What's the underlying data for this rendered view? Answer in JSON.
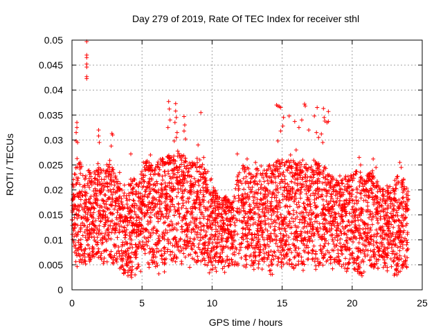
{
  "chart_data": {
    "type": "scatter",
    "title": "Day 279 of 2019, Rate Of TEC Index for receiver sthl",
    "xlabel": "GPS time / hours",
    "ylabel": "ROTI / TECUs",
    "xlim": [
      0,
      25
    ],
    "ylim": [
      0,
      0.05
    ],
    "xticks": [
      0,
      5,
      10,
      15,
      20,
      25
    ],
    "xtick_labels": [
      "0",
      "5",
      "10",
      "15",
      "20",
      "25"
    ],
    "yticks": [
      0,
      0.005,
      0.01,
      0.015,
      0.02,
      0.025,
      0.03,
      0.035,
      0.04,
      0.045,
      0.05
    ],
    "ytick_labels": [
      "0",
      "0.005",
      "0.01",
      "0.015",
      "0.02",
      "0.025",
      "0.03",
      "0.035",
      "0.04",
      "0.045",
      "0.05"
    ],
    "grid": true,
    "marker": "+",
    "color": "#ff0000",
    "series": [
      {
        "name": "ROTI",
        "points": [
          [
            1.05,
            0.0497
          ],
          [
            1.05,
            0.047
          ],
          [
            1.05,
            0.0465
          ],
          [
            1.05,
            0.0452
          ],
          [
            1.05,
            0.0446
          ],
          [
            1.05,
            0.0427
          ],
          [
            1.05,
            0.0423
          ],
          [
            0.35,
            0.0335
          ],
          [
            0.35,
            0.0325
          ],
          [
            0.3,
            0.0315
          ],
          [
            0.3,
            0.0298
          ],
          [
            0.4,
            0.0295
          ],
          [
            1.9,
            0.032
          ],
          [
            1.9,
            0.0308
          ],
          [
            1.95,
            0.0295
          ],
          [
            2.85,
            0.0313
          ],
          [
            2.9,
            0.031
          ],
          [
            2.8,
            0.0288
          ],
          [
            3.4,
            0.0235
          ],
          [
            6.9,
            0.0377
          ],
          [
            6.95,
            0.0362
          ],
          [
            7.0,
            0.034
          ],
          [
            6.85,
            0.0325
          ],
          [
            7.4,
            0.0373
          ],
          [
            7.4,
            0.0358
          ],
          [
            7.45,
            0.0345
          ],
          [
            7.35,
            0.0335
          ],
          [
            7.5,
            0.0315
          ],
          [
            7.45,
            0.0305
          ],
          [
            7.3,
            0.0298
          ],
          [
            8.0,
            0.0347
          ],
          [
            8.05,
            0.033
          ],
          [
            8.0,
            0.0318
          ],
          [
            8.1,
            0.0302
          ],
          [
            9.2,
            0.0355
          ],
          [
            9.0,
            0.029
          ],
          [
            14.6,
            0.037
          ],
          [
            14.7,
            0.0368
          ],
          [
            14.8,
            0.0367
          ],
          [
            14.9,
            0.0365
          ],
          [
            15.1,
            0.0345
          ],
          [
            15.05,
            0.0328
          ],
          [
            14.9,
            0.0318
          ],
          [
            14.7,
            0.0298
          ],
          [
            15.5,
            0.0348
          ],
          [
            15.9,
            0.0337
          ],
          [
            16.2,
            0.0325
          ],
          [
            16.6,
            0.0372
          ],
          [
            16.65,
            0.0368
          ],
          [
            16.4,
            0.034
          ],
          [
            16.9,
            0.032
          ],
          [
            17.5,
            0.0365
          ],
          [
            17.3,
            0.0348
          ],
          [
            17.45,
            0.0315
          ],
          [
            17.6,
            0.0305
          ],
          [
            17.95,
            0.0363
          ],
          [
            18.0,
            0.0345
          ],
          [
            18.05,
            0.0338
          ],
          [
            18.3,
            0.0357
          ],
          [
            18.3,
            0.0337
          ],
          [
            18.2,
            0.0335
          ],
          [
            17.8,
            0.0312
          ],
          [
            17.9,
            0.0295
          ],
          [
            15.0,
            0.0255
          ],
          [
            15.2,
            0.025
          ],
          [
            16.0,
            0.028
          ],
          [
            15.6,
            0.027
          ],
          [
            11.8,
            0.0272
          ],
          [
            20.5,
            0.0265
          ],
          [
            20.6,
            0.025
          ],
          [
            21.5,
            0.0262
          ],
          [
            21.7,
            0.0245
          ],
          [
            23.4,
            0.0255
          ],
          [
            23.5,
            0.0245
          ],
          [
            4.2,
            0.0272
          ],
          [
            5.1,
            0.0255
          ],
          [
            5.6,
            0.027
          ],
          [
            9.4,
            0.0265
          ],
          [
            12.5,
            0.0262
          ],
          [
            13.1,
            0.0255
          ],
          [
            13.5,
            0.0248
          ],
          [
            3.5,
            0.0045
          ],
          [
            3.8,
            0.0035
          ],
          [
            4.0,
            0.0028
          ],
          [
            4.2,
            0.003
          ],
          [
            4.25,
            0.0025
          ],
          [
            4.5,
            0.003
          ],
          [
            4.9,
            0.0037
          ],
          [
            5.5,
            0.0045
          ],
          [
            6.2,
            0.0032
          ],
          [
            6.6,
            0.0036
          ],
          [
            8.4,
            0.0045
          ],
          [
            9.8,
            0.0034
          ],
          [
            10.3,
            0.0037
          ],
          [
            10.9,
            0.0035
          ],
          [
            11.2,
            0.0048
          ],
          [
            13.3,
            0.0044
          ],
          [
            14.1,
            0.0038
          ],
          [
            14.3,
            0.0031
          ],
          [
            16.5,
            0.0039
          ],
          [
            17.4,
            0.0041
          ],
          [
            18.6,
            0.0042
          ],
          [
            19.6,
            0.0037
          ],
          [
            20.2,
            0.004
          ],
          [
            20.5,
            0.0032
          ],
          [
            20.7,
            0.0028
          ],
          [
            22.5,
            0.0038
          ],
          [
            23.0,
            0.0029
          ],
          [
            23.05,
            0.0032
          ],
          [
            23.2,
            0.003
          ],
          [
            23.3,
            0.0035
          ],
          [
            23.9,
            0.0045
          ]
        ],
        "bulk_envelope": [
          [
            0.0,
            0.009,
            0.02
          ],
          [
            0.25,
            0.004,
            0.026
          ],
          [
            0.5,
            0.004,
            0.027
          ],
          [
            0.75,
            0.005,
            0.025
          ],
          [
            1.0,
            0.005,
            0.023
          ],
          [
            1.25,
            0.005,
            0.025
          ],
          [
            1.5,
            0.006,
            0.023
          ],
          [
            1.75,
            0.005,
            0.025
          ],
          [
            2.0,
            0.005,
            0.026
          ],
          [
            2.25,
            0.005,
            0.024
          ],
          [
            2.5,
            0.005,
            0.026
          ],
          [
            2.75,
            0.006,
            0.026
          ],
          [
            3.0,
            0.004,
            0.024
          ],
          [
            3.25,
            0.004,
            0.022
          ],
          [
            3.5,
            0.004,
            0.021
          ],
          [
            3.75,
            0.003,
            0.021
          ],
          [
            4.0,
            0.003,
            0.021
          ],
          [
            4.25,
            0.003,
            0.023
          ],
          [
            4.5,
            0.004,
            0.022
          ],
          [
            4.75,
            0.004,
            0.021
          ],
          [
            5.0,
            0.005,
            0.024
          ],
          [
            5.25,
            0.005,
            0.026
          ],
          [
            5.5,
            0.005,
            0.026
          ],
          [
            5.75,
            0.005,
            0.026
          ],
          [
            6.0,
            0.004,
            0.026
          ],
          [
            6.25,
            0.004,
            0.026
          ],
          [
            6.5,
            0.005,
            0.027
          ],
          [
            6.75,
            0.005,
            0.027
          ],
          [
            7.0,
            0.005,
            0.028
          ],
          [
            7.25,
            0.005,
            0.027
          ],
          [
            7.5,
            0.005,
            0.028
          ],
          [
            7.75,
            0.005,
            0.027
          ],
          [
            8.0,
            0.005,
            0.027
          ],
          [
            8.25,
            0.005,
            0.026
          ],
          [
            8.5,
            0.005,
            0.026
          ],
          [
            8.75,
            0.005,
            0.026
          ],
          [
            9.0,
            0.005,
            0.027
          ],
          [
            9.25,
            0.005,
            0.026
          ],
          [
            9.5,
            0.005,
            0.024
          ],
          [
            9.75,
            0.004,
            0.024
          ],
          [
            10.0,
            0.004,
            0.022
          ],
          [
            10.25,
            0.004,
            0.02
          ],
          [
            10.5,
            0.004,
            0.019
          ],
          [
            10.75,
            0.004,
            0.018
          ],
          [
            11.0,
            0.004,
            0.019
          ],
          [
            11.25,
            0.004,
            0.018
          ],
          [
            11.5,
            0.005,
            0.018
          ],
          [
            11.9,
            0.004,
            0.024
          ],
          [
            12.25,
            0.004,
            0.025
          ],
          [
            12.5,
            0.004,
            0.025
          ],
          [
            12.75,
            0.004,
            0.024
          ],
          [
            13.0,
            0.004,
            0.024
          ],
          [
            13.25,
            0.004,
            0.025
          ],
          [
            13.5,
            0.004,
            0.024
          ],
          [
            13.75,
            0.004,
            0.024
          ],
          [
            14.0,
            0.003,
            0.025
          ],
          [
            14.25,
            0.003,
            0.025
          ],
          [
            14.5,
            0.004,
            0.026
          ],
          [
            14.75,
            0.004,
            0.026
          ],
          [
            15.0,
            0.004,
            0.027
          ],
          [
            15.25,
            0.005,
            0.026
          ],
          [
            15.5,
            0.005,
            0.026
          ],
          [
            15.75,
            0.004,
            0.026
          ],
          [
            16.0,
            0.004,
            0.026
          ],
          [
            16.25,
            0.005,
            0.026
          ],
          [
            16.5,
            0.005,
            0.026
          ],
          [
            16.75,
            0.005,
            0.025
          ],
          [
            17.0,
            0.005,
            0.025
          ],
          [
            17.25,
            0.005,
            0.026
          ],
          [
            17.5,
            0.004,
            0.026
          ],
          [
            17.75,
            0.004,
            0.026
          ],
          [
            18.0,
            0.005,
            0.025
          ],
          [
            18.25,
            0.005,
            0.024
          ],
          [
            18.5,
            0.005,
            0.023
          ],
          [
            18.75,
            0.005,
            0.023
          ],
          [
            19.0,
            0.005,
            0.023
          ],
          [
            19.25,
            0.004,
            0.023
          ],
          [
            19.5,
            0.004,
            0.023
          ],
          [
            19.75,
            0.004,
            0.023
          ],
          [
            20.0,
            0.004,
            0.023
          ],
          [
            20.25,
            0.004,
            0.024
          ],
          [
            20.5,
            0.003,
            0.024
          ],
          [
            20.75,
            0.003,
            0.023
          ],
          [
            21.0,
            0.004,
            0.023
          ],
          [
            21.25,
            0.004,
            0.024
          ],
          [
            21.5,
            0.004,
            0.024
          ],
          [
            21.75,
            0.004,
            0.022
          ],
          [
            22.0,
            0.004,
            0.021
          ],
          [
            22.25,
            0.004,
            0.021
          ],
          [
            22.5,
            0.004,
            0.021
          ],
          [
            22.75,
            0.004,
            0.021
          ],
          [
            23.0,
            0.003,
            0.022
          ],
          [
            23.25,
            0.003,
            0.023
          ],
          [
            23.5,
            0.004,
            0.023
          ],
          [
            23.75,
            0.004,
            0.023
          ],
          [
            24.0,
            0.005,
            0.02
          ]
        ]
      }
    ]
  }
}
